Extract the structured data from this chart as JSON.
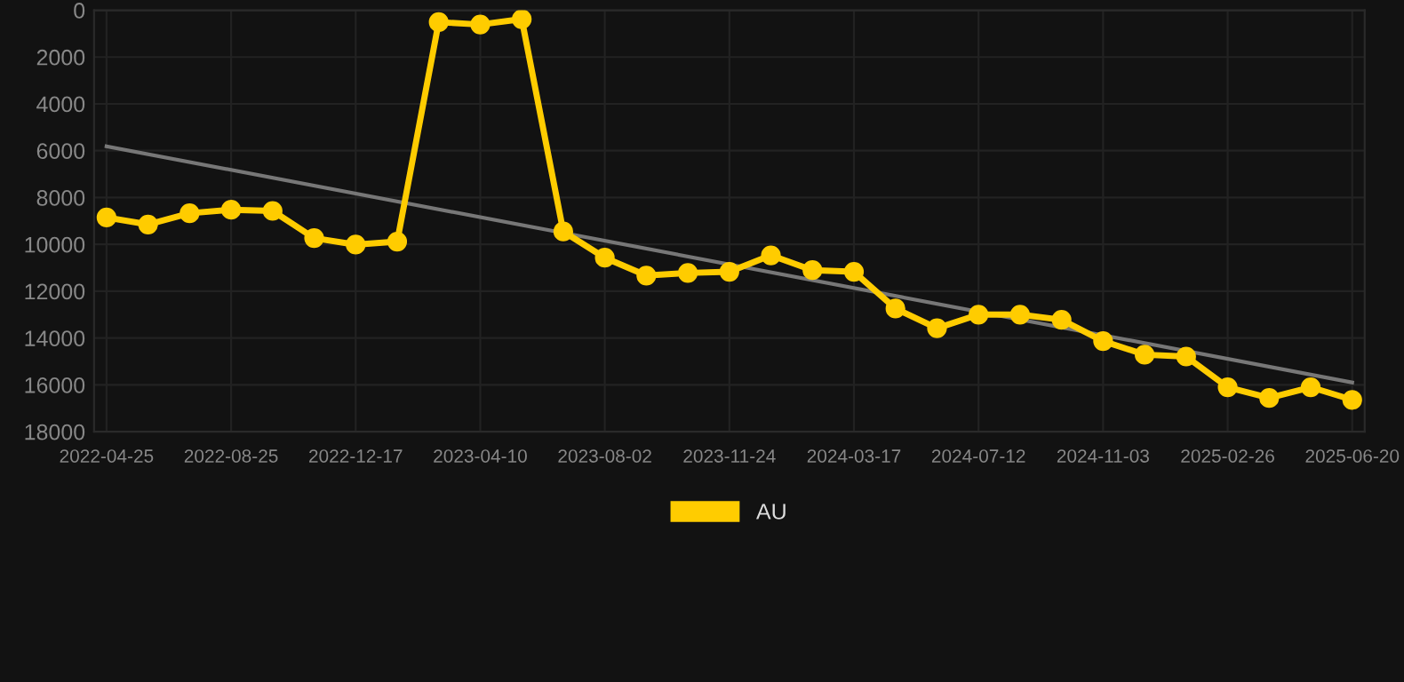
{
  "chart_data": {
    "type": "line",
    "categories": [
      "2022-04-25",
      null,
      null,
      "2022-08-25",
      null,
      null,
      "2022-12-17",
      null,
      null,
      "2023-04-10",
      null,
      null,
      "2023-08-02",
      null,
      null,
      "2023-11-24",
      null,
      null,
      "2024-03-17",
      null,
      null,
      "2024-07-12",
      null,
      null,
      "2024-11-03",
      null,
      null,
      "2025-02-26",
      null,
      null,
      "2025-06-20"
    ],
    "series": [
      {
        "name": "AU",
        "color": "#ffcc00",
        "marker": "circle",
        "values": [
          8850,
          9150,
          8670,
          8520,
          8570,
          9730,
          10010,
          9880,
          510,
          610,
          380,
          9450,
          10570,
          11330,
          11220,
          11170,
          10470,
          11100,
          11170,
          12740,
          13580,
          13000,
          13000,
          13220,
          14130,
          14710,
          14790,
          16100,
          16560,
          16100,
          16640
        ]
      },
      {
        "type": "line",
        "color": "#777777",
        "marker": "none",
        "values": [
          5810,
          null,
          null,
          null,
          null,
          null,
          null,
          null,
          null,
          null,
          null,
          null,
          null,
          null,
          null,
          null,
          null,
          null,
          null,
          null,
          null,
          null,
          null,
          null,
          null,
          null,
          null,
          null,
          null,
          null,
          15900
        ]
      }
    ],
    "ylim": [
      18000,
      0
    ],
    "yticks": [
      0,
      2000,
      4000,
      6000,
      8000,
      10000,
      12000,
      14000,
      16000,
      18000
    ],
    "grid": true,
    "legend": "bottom",
    "line_style": "solid"
  }
}
